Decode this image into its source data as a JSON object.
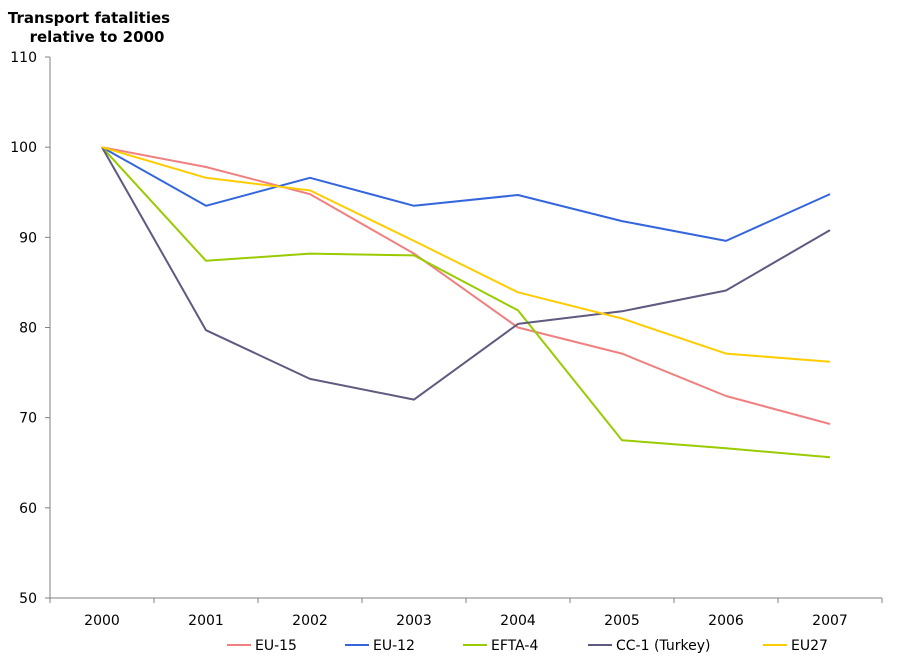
{
  "chart_data": {
    "type": "line",
    "title": "",
    "xlabel": "",
    "ylabel": [
      "Transport fatalities",
      "relative to 2000"
    ],
    "ylim": [
      50,
      110
    ],
    "yticks": [
      50,
      60,
      70,
      80,
      90,
      100,
      110
    ],
    "grid": false,
    "legend_position": "bottom",
    "categories": [
      "2000",
      "2001",
      "2002",
      "2003",
      "2004",
      "2005",
      "2006",
      "2007"
    ],
    "series": [
      {
        "name": "EU-15",
        "color": "#f08080",
        "values": [
          100,
          97.8,
          94.8,
          88.2,
          80.0,
          77.1,
          72.4,
          69.3
        ]
      },
      {
        "name": "EU-12",
        "color": "#3366dd",
        "values": [
          100,
          93.5,
          96.6,
          93.5,
          94.7,
          91.8,
          89.6,
          94.8
        ]
      },
      {
        "name": "EFTA-4",
        "color": "#99cc00",
        "values": [
          100,
          87.4,
          88.2,
          88.0,
          81.9,
          67.5,
          66.6,
          65.6
        ]
      },
      {
        "name": "CC-1 (Turkey)",
        "color": "#5f5a7f",
        "values": [
          100,
          79.7,
          74.3,
          72.0,
          80.4,
          81.8,
          84.1,
          90.8
        ]
      },
      {
        "name": "EU27",
        "color": "#ffcc00",
        "values": [
          100,
          96.6,
          95.2,
          89.6,
          83.9,
          81.0,
          77.1,
          76.2
        ]
      }
    ]
  }
}
